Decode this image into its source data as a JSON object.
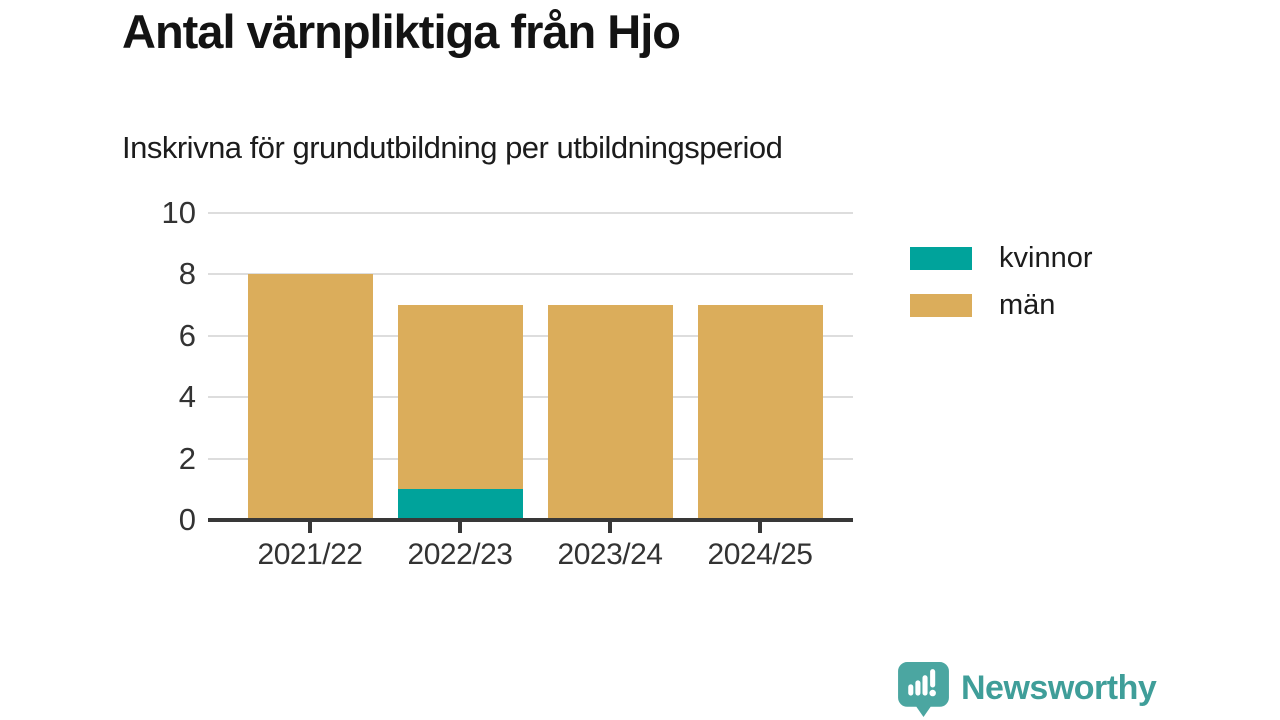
{
  "chart_data": {
    "type": "bar",
    "stacked": true,
    "title": "Antal värnpliktiga från Hjo",
    "subtitle": "Inskrivna för grundutbildning per utbildningsperiod",
    "categories": [
      "2021/22",
      "2022/23",
      "2023/24",
      "2024/25"
    ],
    "series": [
      {
        "name": "kvinnor",
        "color": "#00A39B",
        "values": [
          0,
          1,
          0,
          0
        ]
      },
      {
        "name": "män",
        "color": "#DBAD5B",
        "values": [
          8,
          6,
          7,
          7
        ]
      }
    ],
    "totals": [
      8,
      7,
      7,
      7
    ],
    "ylim": [
      0,
      10
    ],
    "yticks": [
      0,
      2,
      4,
      6,
      8,
      10
    ],
    "xlabel": "",
    "ylabel": "",
    "grid": "horizontal",
    "legend_position": "right"
  },
  "colors": {
    "grid": "#dddddd",
    "axis": "#383838",
    "tick_text": "#333333",
    "title_text": "#131313"
  },
  "footer": {
    "brand": "Newsworthy",
    "brand_color": "#3F9E99",
    "logo_bubble_color": "#4BA6A1",
    "logo_icon": "newsworthy-speech-bubble-bar-chart-icon"
  }
}
